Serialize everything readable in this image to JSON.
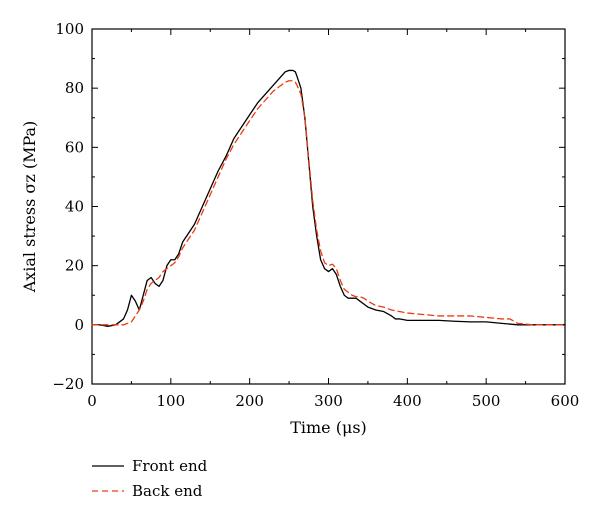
{
  "chart_data": {
    "type": "line",
    "title": "",
    "xlabel": "Time (μs)",
    "ylabel": "Axial stress σz (MPa)",
    "xlim": [
      0,
      600
    ],
    "ylim": [
      -20,
      100
    ],
    "xticks": [
      0,
      100,
      200,
      300,
      400,
      500,
      600
    ],
    "yticks": [
      -20,
      0,
      20,
      40,
      60,
      80,
      100
    ],
    "grid": false,
    "legend_position": "bottom-left, below plot",
    "series": [
      {
        "name": "Front end",
        "color": "#000000",
        "style": "solid",
        "x": [
          0,
          10,
          20,
          30,
          40,
          45,
          50,
          55,
          60,
          65,
          70,
          75,
          80,
          85,
          90,
          95,
          100,
          105,
          110,
          115,
          120,
          130,
          140,
          150,
          160,
          170,
          180,
          190,
          200,
          210,
          220,
          230,
          240,
          245,
          250,
          255,
          258,
          260,
          265,
          270,
          275,
          280,
          285,
          290,
          295,
          300,
          305,
          310,
          315,
          320,
          325,
          330,
          335,
          340,
          345,
          350,
          360,
          370,
          380,
          385,
          390,
          400,
          420,
          440,
          460,
          480,
          500,
          520,
          540,
          560,
          580,
          600
        ],
        "y": [
          0,
          0,
          -0.5,
          0,
          2,
          5,
          10,
          8,
          5,
          10,
          15,
          16,
          14,
          13,
          15,
          20,
          22,
          22,
          24,
          28,
          30,
          34,
          40,
          46,
          52,
          57,
          63,
          67,
          71,
          75,
          78,
          81,
          84,
          85.5,
          86,
          86,
          85.5,
          84,
          80,
          70,
          55,
          40,
          30,
          22,
          19,
          18,
          19,
          17,
          13,
          10,
          9,
          9,
          9,
          8,
          7,
          6,
          5,
          4.5,
          3,
          2,
          2,
          1.5,
          1.5,
          1.5,
          1.2,
          1,
          1,
          0.5,
          0,
          0,
          0,
          0
        ]
      },
      {
        "name": "Back end",
        "color": "#ee3a10",
        "style": "dashed",
        "x": [
          0,
          10,
          20,
          30,
          40,
          50,
          60,
          65,
          70,
          75,
          80,
          85,
          90,
          95,
          100,
          105,
          110,
          115,
          120,
          130,
          140,
          150,
          160,
          170,
          180,
          190,
          200,
          210,
          220,
          230,
          240,
          245,
          250,
          255,
          258,
          260,
          265,
          270,
          275,
          280,
          285,
          290,
          295,
          300,
          305,
          310,
          315,
          320,
          325,
          330,
          335,
          340,
          345,
          350,
          360,
          370,
          380,
          390,
          400,
          420,
          440,
          460,
          480,
          500,
          520,
          530,
          540,
          560,
          580,
          600
        ],
        "y": [
          0,
          0,
          0,
          0,
          0,
          1,
          5,
          8,
          12,
          14,
          15,
          16,
          18,
          19,
          20,
          21,
          23,
          26,
          28,
          32,
          38,
          44,
          50,
          56,
          61,
          65,
          69,
          73,
          76,
          79,
          81,
          82,
          82.5,
          82.5,
          82,
          81,
          78,
          70,
          56,
          42,
          32,
          25,
          21,
          20,
          20.5,
          19,
          15,
          12,
          11,
          10,
          9.5,
          9.5,
          9,
          8,
          6.5,
          6,
          5,
          4.5,
          4,
          3.5,
          3,
          3,
          3,
          2.5,
          2,
          2,
          0.5,
          0,
          0,
          0
        ]
      }
    ]
  }
}
